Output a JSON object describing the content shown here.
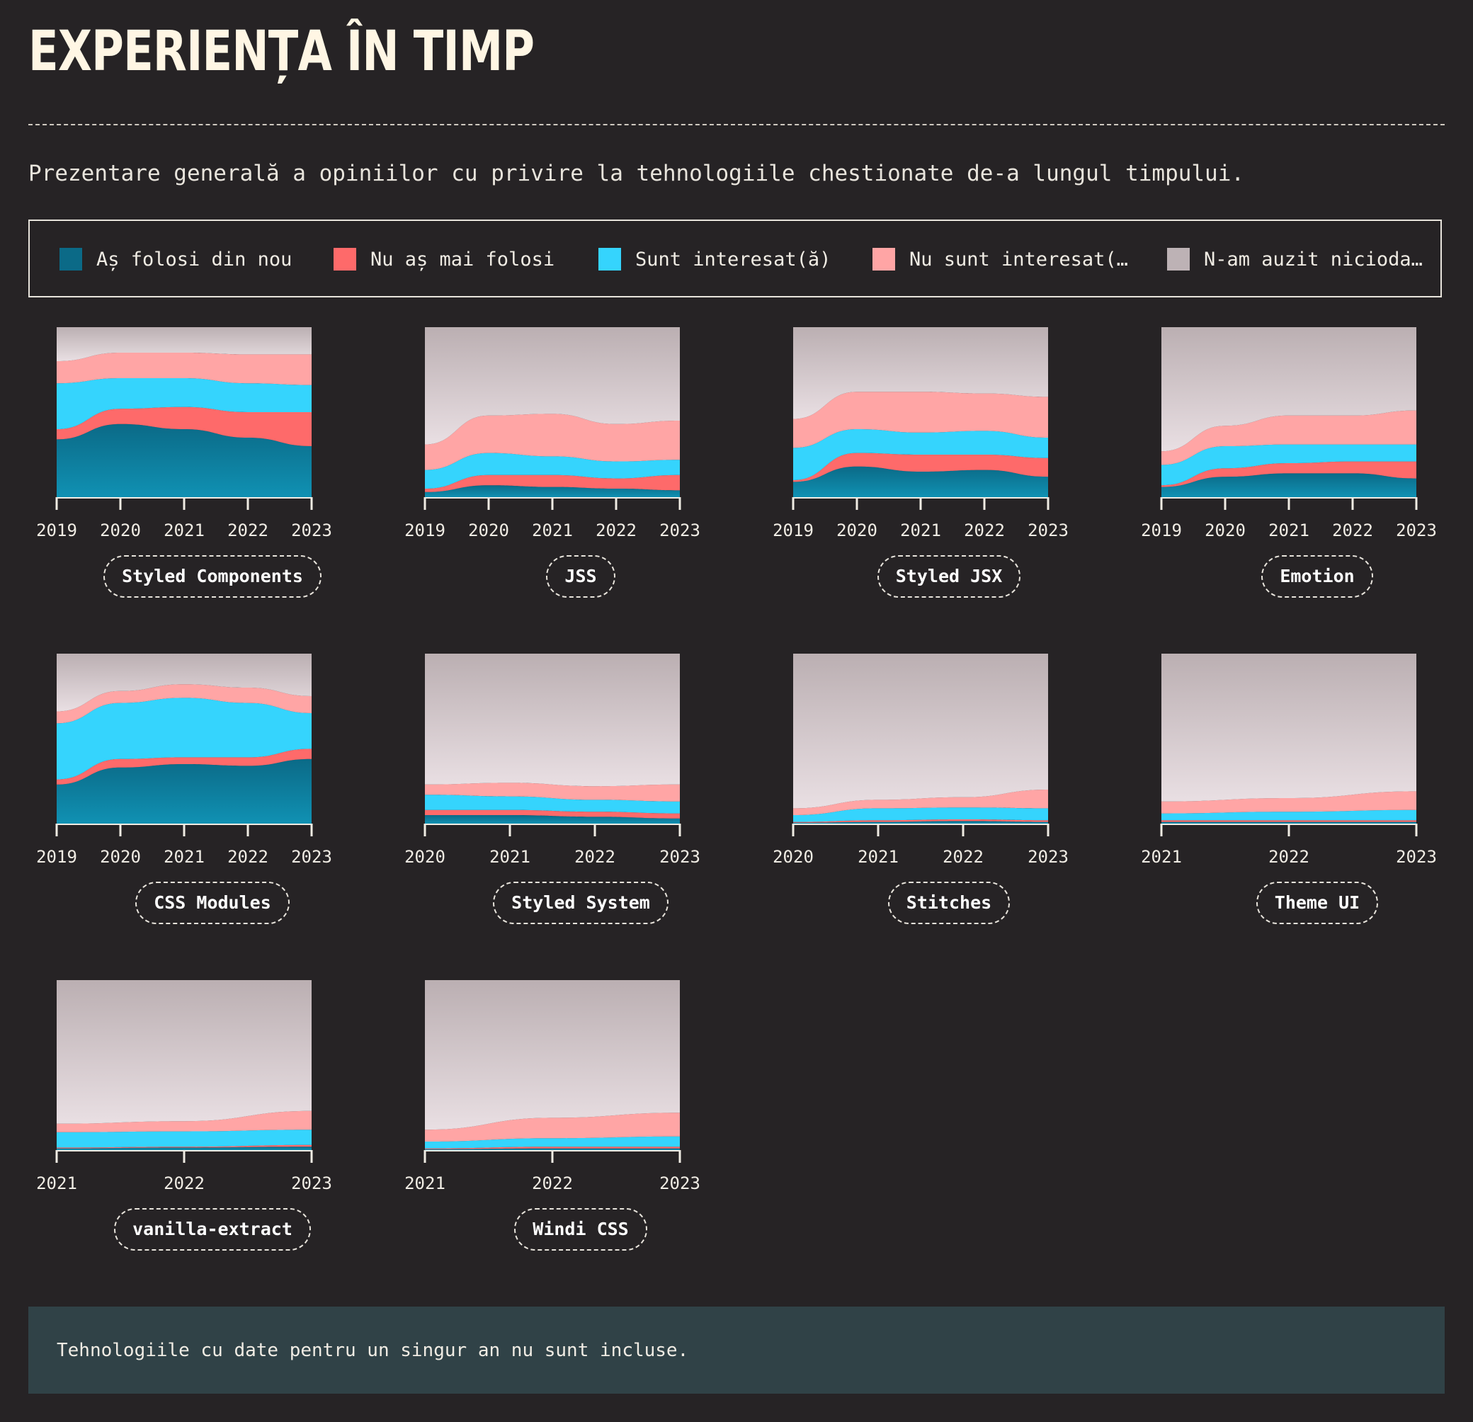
{
  "page": {
    "title": "EXPERIENȚA ÎN TIMP",
    "description": "Prezentare generală a opiniilor cu privire la tehnologiile chestionate de-a lungul timpului.",
    "footer_note": "Tehnologiile cu date pentru un singur an nu sunt incluse."
  },
  "legend": [
    {
      "label": "Aș folosi din nou",
      "color": "#0b6a87"
    },
    {
      "label": "Nu aș mai folosi",
      "color": "#fe6a6a"
    },
    {
      "label": "Sunt interesat(ă)",
      "color": "#35d4fd"
    },
    {
      "label": "Nu sunt interesat(…",
      "color": "#ffa5a5"
    },
    {
      "label": "N-am auzit nicioda…",
      "color": "#bdb2b5"
    }
  ],
  "chart_data": [
    {
      "type": "area",
      "stacked": true,
      "normalized": true,
      "title": "Styled Components",
      "x": [
        "2019",
        "2020",
        "2021",
        "2022",
        "2023"
      ],
      "series": [
        {
          "name": "Aș folosi din nou",
          "values": [
            34,
            43,
            40,
            35,
            30
          ]
        },
        {
          "name": "Nu aș mai folosi",
          "values": [
            6,
            9,
            13,
            15,
            20
          ]
        },
        {
          "name": "Sunt interesat(ă)",
          "values": [
            27,
            18,
            17,
            17,
            16
          ]
        },
        {
          "name": "Nu sunt interesat(…",
          "values": [
            13,
            15,
            15,
            17,
            18
          ]
        },
        {
          "name": "N-am auzit nicioda…",
          "values": [
            20,
            15,
            15,
            16,
            16
          ]
        }
      ]
    },
    {
      "type": "area",
      "stacked": true,
      "normalized": true,
      "title": "JSS",
      "x": [
        "2019",
        "2020",
        "2021",
        "2022",
        "2023"
      ],
      "series": [
        {
          "name": "Aș folosi din nou",
          "values": [
            3,
            7,
            6,
            5,
            4
          ]
        },
        {
          "name": "Nu aș mai folosi",
          "values": [
            2,
            6,
            7,
            6,
            9
          ]
        },
        {
          "name": "Sunt interesat(ă)",
          "values": [
            11,
            13,
            11,
            10,
            9
          ]
        },
        {
          "name": "Nu sunt interesat(…",
          "values": [
            15,
            22,
            25,
            22,
            23
          ]
        },
        {
          "name": "N-am auzit nicioda…",
          "values": [
            69,
            52,
            51,
            57,
            55
          ]
        }
      ]
    },
    {
      "type": "area",
      "stacked": true,
      "normalized": true,
      "title": "Styled JSX",
      "x": [
        "2019",
        "2020",
        "2021",
        "2022",
        "2023"
      ],
      "series": [
        {
          "name": "Aș folosi din nou",
          "values": [
            9,
            18,
            15,
            16,
            12
          ]
        },
        {
          "name": "Nu aș mai folosi",
          "values": [
            1,
            8,
            10,
            9,
            11
          ]
        },
        {
          "name": "Sunt interesat(ă)",
          "values": [
            19,
            14,
            13,
            14,
            12
          ]
        },
        {
          "name": "Nu sunt interesat(…",
          "values": [
            17,
            22,
            24,
            22,
            24
          ]
        },
        {
          "name": "N-am auzit nicioda…",
          "values": [
            54,
            38,
            38,
            39,
            41
          ]
        }
      ]
    },
    {
      "type": "area",
      "stacked": true,
      "normalized": true,
      "title": "Emotion",
      "x": [
        "2019",
        "2020",
        "2021",
        "2022",
        "2023"
      ],
      "series": [
        {
          "name": "Aș folosi din nou",
          "values": [
            6,
            12,
            14,
            14,
            11
          ]
        },
        {
          "name": "Nu aș mai folosi",
          "values": [
            1,
            5,
            6,
            7,
            10
          ]
        },
        {
          "name": "Sunt interesat(ă)",
          "values": [
            12,
            13,
            11,
            10,
            10
          ]
        },
        {
          "name": "Nu sunt interesat(…",
          "values": [
            8,
            12,
            17,
            17,
            20
          ]
        },
        {
          "name": "N-am auzit nicioda…",
          "values": [
            73,
            58,
            52,
            52,
            49
          ]
        }
      ]
    },
    {
      "type": "area",
      "stacked": true,
      "normalized": true,
      "title": "CSS Modules",
      "x": [
        "2019",
        "2020",
        "2021",
        "2022",
        "2023"
      ],
      "series": [
        {
          "name": "Aș folosi din nou",
          "values": [
            23,
            33,
            35,
            34,
            38
          ]
        },
        {
          "name": "Nu aș mai folosi",
          "values": [
            3,
            5,
            4,
            5,
            6
          ]
        },
        {
          "name": "Sunt interesat(ă)",
          "values": [
            33,
            33,
            35,
            32,
            21
          ]
        },
        {
          "name": "Nu sunt interesat(…",
          "values": [
            7,
            7,
            8,
            9,
            10
          ]
        },
        {
          "name": "N-am auzit nicioda…",
          "values": [
            34,
            22,
            18,
            20,
            25
          ]
        }
      ]
    },
    {
      "type": "area",
      "stacked": true,
      "normalized": true,
      "title": "Styled System",
      "x": [
        "2020",
        "2021",
        "2022",
        "2023"
      ],
      "series": [
        {
          "name": "Aș folosi din nou",
          "values": [
            5,
            5,
            4,
            3
          ]
        },
        {
          "name": "Nu aș mai folosi",
          "values": [
            3,
            3,
            3,
            3
          ]
        },
        {
          "name": "Sunt interesat(ă)",
          "values": [
            9,
            8,
            7,
            7
          ]
        },
        {
          "name": "Nu sunt interesat(…",
          "values": [
            6,
            8,
            8,
            10
          ]
        },
        {
          "name": "N-am auzit nicioda…",
          "values": [
            77,
            76,
            78,
            77
          ]
        }
      ]
    },
    {
      "type": "area",
      "stacked": true,
      "normalized": true,
      "title": "Stitches",
      "x": [
        "2020",
        "2021",
        "2022",
        "2023"
      ],
      "series": [
        {
          "name": "Aș folosi din nou",
          "values": [
            0.5,
            1,
            1.5,
            1
          ]
        },
        {
          "name": "Nu aș mai folosi",
          "values": [
            0.5,
            1,
            1,
            1
          ]
        },
        {
          "name": "Sunt interesat(ă)",
          "values": [
            4,
            7,
            7,
            7
          ]
        },
        {
          "name": "Nu sunt interesat(…",
          "values": [
            4,
            5,
            6,
            11
          ]
        },
        {
          "name": "N-am auzit nicioda…",
          "values": [
            91,
            86,
            84.5,
            80
          ]
        }
      ]
    },
    {
      "type": "area",
      "stacked": true,
      "normalized": true,
      "title": "Theme UI",
      "x": [
        "2021",
        "2022",
        "2023"
      ],
      "series": [
        {
          "name": "Aș folosi din nou",
          "values": [
            1,
            1,
            1
          ]
        },
        {
          "name": "Nu aș mai folosi",
          "values": [
            1,
            1,
            1
          ]
        },
        {
          "name": "Sunt interesat(ă)",
          "values": [
            4,
            5,
            6
          ]
        },
        {
          "name": "Nu sunt interesat(…",
          "values": [
            7,
            8,
            11
          ]
        },
        {
          "name": "N-am auzit nicioda…",
          "values": [
            87,
            85,
            81
          ]
        }
      ]
    },
    {
      "type": "area",
      "stacked": true,
      "normalized": true,
      "title": "vanilla-extract",
      "x": [
        "2021",
        "2022",
        "2023"
      ],
      "series": [
        {
          "name": "Aș folosi din nou",
          "values": [
            1,
            1.5,
            2
          ]
        },
        {
          "name": "Nu aș mai folosi",
          "values": [
            0.5,
            0.5,
            1
          ]
        },
        {
          "name": "Sunt interesat(ă)",
          "values": [
            9,
            9,
            9
          ]
        },
        {
          "name": "Nu sunt interesat(…",
          "values": [
            5,
            6,
            11
          ]
        },
        {
          "name": "N-am auzit nicioda…",
          "values": [
            84.5,
            83,
            77
          ]
        }
      ]
    },
    {
      "type": "area",
      "stacked": true,
      "normalized": true,
      "title": "Windi CSS",
      "x": [
        "2021",
        "2022",
        "2023"
      ],
      "series": [
        {
          "name": "Aș folosi din nou",
          "values": [
            0.5,
            1,
            1
          ]
        },
        {
          "name": "Nu aș mai folosi",
          "values": [
            0.5,
            1,
            1
          ]
        },
        {
          "name": "Sunt interesat(ă)",
          "values": [
            4,
            5,
            6
          ]
        },
        {
          "name": "Nu sunt interesat(…",
          "values": [
            7,
            12,
            14
          ]
        },
        {
          "name": "N-am auzit nicioda…",
          "values": [
            88,
            81,
            78
          ]
        }
      ]
    }
  ]
}
